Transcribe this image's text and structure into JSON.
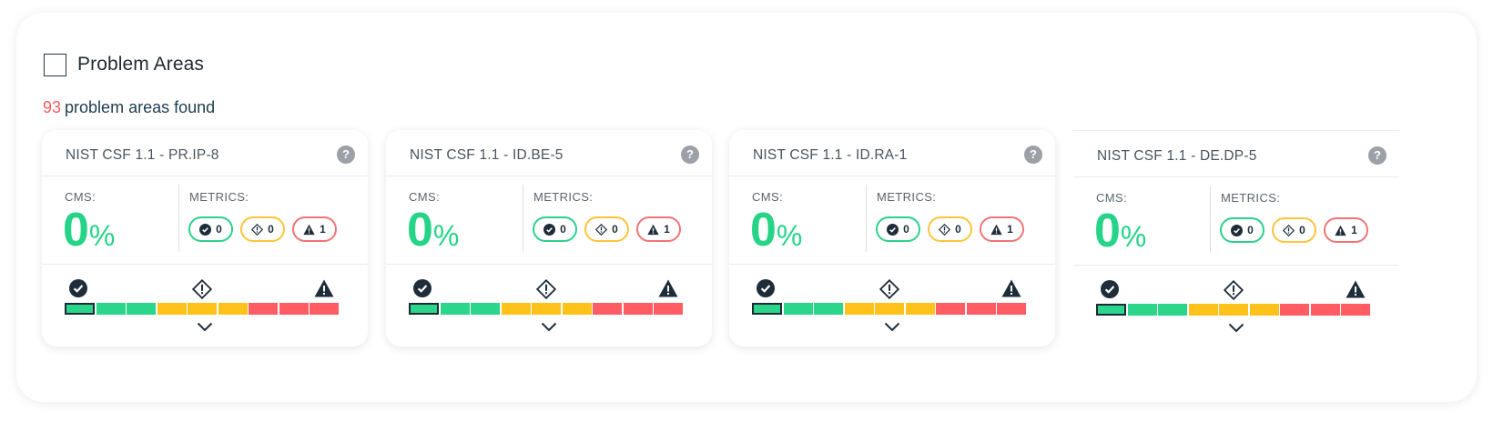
{
  "header": {
    "title": "Problem Areas",
    "count": "93",
    "summary_text": "problem areas found"
  },
  "labels": {
    "cms": "CMS:",
    "metrics": "METRICS:",
    "help": "?",
    "percent": "%"
  },
  "colors": {
    "ok": "#2bd58a",
    "warn": "#ffc21a",
    "critical": "#ff5c64",
    "count_red": "#ff5a5f"
  },
  "cards": [
    {
      "title": "NIST CSF 1.1 - PR.IP-8",
      "cms": "0",
      "metrics": {
        "ok": "0",
        "warn": "0",
        "critical": "1"
      }
    },
    {
      "title": "NIST CSF 1.1 - ID.BE-5",
      "cms": "0",
      "metrics": {
        "ok": "0",
        "warn": "0",
        "critical": "1"
      }
    },
    {
      "title": "NIST CSF 1.1 - ID.RA-1",
      "cms": "0",
      "metrics": {
        "ok": "0",
        "warn": "0",
        "critical": "1"
      }
    },
    {
      "title": "NIST CSF 1.1 - DE.DP-5",
      "cms": "0",
      "metrics": {
        "ok": "0",
        "warn": "0",
        "critical": "1"
      }
    }
  ],
  "icons": {
    "ok": "check-circle-icon",
    "warn": "diamond-exclamation-icon",
    "critical": "triangle-warning-icon",
    "expand": "chevron-down-icon",
    "help": "question-icon"
  }
}
